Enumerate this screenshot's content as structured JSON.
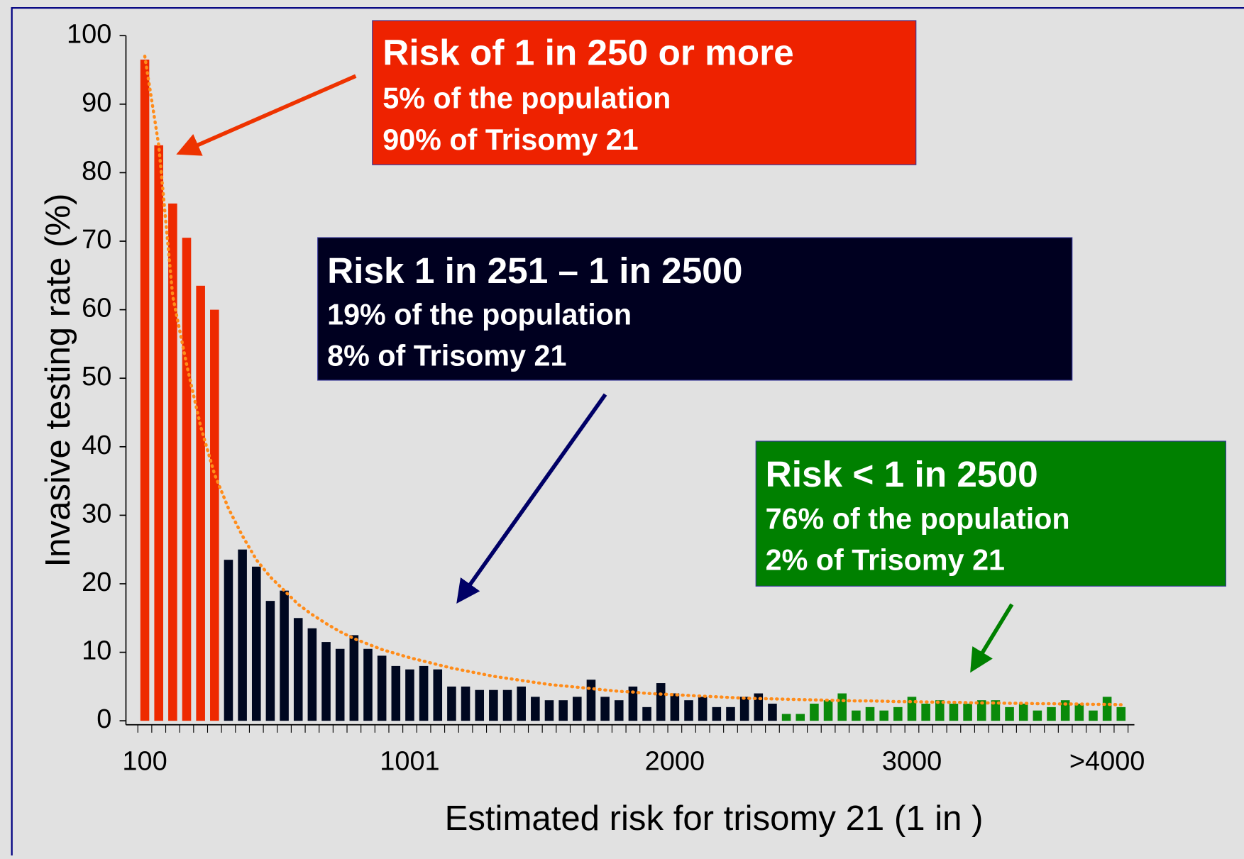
{
  "chart_data": {
    "type": "bar",
    "x_label": "Estimated risk for trisomy 21 (1 in )",
    "y_label": "Invasive testing rate (%)",
    "categories": [
      "100",
      null,
      null,
      null,
      null,
      null,
      null,
      null,
      null,
      null,
      null,
      null,
      null,
      null,
      null,
      null,
      null,
      null,
      null,
      "1001",
      null,
      null,
      null,
      null,
      null,
      null,
      null,
      null,
      null,
      null,
      null,
      null,
      null,
      null,
      null,
      null,
      null,
      null,
      "2000",
      null,
      null,
      null,
      null,
      null,
      null,
      null,
      null,
      null,
      null,
      null,
      null,
      null,
      null,
      null,
      null,
      "3000",
      null,
      null,
      null,
      null,
      null,
      null,
      null,
      null,
      null,
      null,
      null,
      null,
      null,
      ">4000",
      null
    ],
    "series": [
      {
        "type": "bar",
        "color": "#ee2a00",
        "values": [
          96.5,
          84,
          75.5,
          70.5,
          63.5,
          60,
          null,
          null,
          null,
          null,
          null,
          null,
          null,
          null,
          null,
          null,
          null,
          null,
          null,
          null,
          null,
          null,
          null,
          null,
          null,
          null,
          null,
          null,
          null,
          null,
          null,
          null,
          null,
          null,
          null,
          null,
          null,
          null,
          null,
          null,
          null,
          null,
          null,
          null,
          null,
          null,
          null,
          null,
          null,
          null,
          null,
          null,
          null,
          null,
          null,
          null,
          null,
          null,
          null,
          null,
          null,
          null,
          null,
          null,
          null,
          null,
          null,
          null,
          null,
          null,
          null
        ]
      },
      {
        "type": "bar",
        "color": "#000820",
        "values": [
          null,
          null,
          null,
          null,
          null,
          null,
          23.5,
          25,
          22.5,
          17.5,
          19,
          15,
          13.5,
          11.5,
          10.5,
          12.5,
          10.5,
          9.5,
          8,
          7.5,
          8,
          7.5,
          5,
          5,
          4.5,
          4.5,
          4.5,
          5,
          3.5,
          3,
          3,
          3.5,
          6,
          3.5,
          3,
          5,
          2,
          5.5,
          4,
          3,
          3.5,
          2,
          2,
          3.5,
          4,
          2.5,
          null,
          null,
          null,
          null,
          null,
          null,
          null,
          null,
          null,
          null,
          null,
          null,
          null,
          null,
          null,
          null,
          null,
          null,
          null,
          null,
          null,
          null,
          null,
          null,
          null
        ]
      },
      {
        "type": "bar",
        "color": "#0a8a0a",
        "values": [
          null,
          null,
          null,
          null,
          null,
          null,
          null,
          null,
          null,
          null,
          null,
          null,
          null,
          null,
          null,
          null,
          null,
          null,
          null,
          null,
          null,
          null,
          null,
          null,
          null,
          null,
          null,
          null,
          null,
          null,
          null,
          null,
          null,
          null,
          null,
          null,
          null,
          null,
          null,
          null,
          null,
          null,
          null,
          null,
          null,
          null,
          1,
          1,
          2.5,
          3,
          4,
          1.5,
          2,
          1.5,
          2,
          3.5,
          2.5,
          3,
          2.5,
          2.5,
          3,
          3,
          2,
          2.5,
          1.5,
          2,
          3,
          2.5,
          1.5,
          3.5,
          2
        ]
      },
      {
        "type": "line",
        "color": "#ff8c1a",
        "dotted": true,
        "values": [
          97,
          84,
          62,
          52,
          43,
          36,
          31,
          27,
          23.5,
          21,
          19,
          17,
          15.5,
          14.2,
          13,
          12,
          11.2,
          10.4,
          9.8,
          9.2,
          8.7,
          8.2,
          7.7,
          7.3,
          6.9,
          6.5,
          6.2,
          5.9,
          5.6,
          5.3,
          5.1,
          4.9,
          4.7,
          4.5,
          4.3,
          4.2,
          4.0,
          3.9,
          3.8,
          3.7,
          3.6,
          3.5,
          3.4,
          3.3,
          3.25,
          3.2,
          3.15,
          3.1,
          3.05,
          3.0,
          2.95,
          2.9,
          2.9,
          2.85,
          2.8,
          2.8,
          2.75,
          2.7,
          2.7,
          2.65,
          2.6,
          2.6,
          2.55,
          2.55,
          2.5,
          2.5,
          2.45,
          2.45,
          2.4,
          2.4,
          2.35
        ]
      }
    ],
    "ylim": [
      0,
      100
    ],
    "yticks": [
      0,
      10,
      20,
      30,
      40,
      50,
      60,
      70,
      80,
      90,
      100
    ],
    "annotations": [
      {
        "title": "Risk of 1 in 250 or more",
        "lines": [
          "5% of the population",
          "90% of Trisomy 21"
        ],
        "color": "#ee2200",
        "arrow_color": "#ee3300"
      },
      {
        "title": "Risk 1 in 251 – 1 in 2500",
        "lines": [
          "19% of the population",
          "8% of Trisomy 21"
        ],
        "color": "#000020",
        "arrow_color": "#000066"
      },
      {
        "title": "Risk < 1 in 2500",
        "lines": [
          "76% of the population",
          "2% of Trisomy 21"
        ],
        "color": "#008000",
        "arrow_color": "#008000"
      }
    ]
  }
}
